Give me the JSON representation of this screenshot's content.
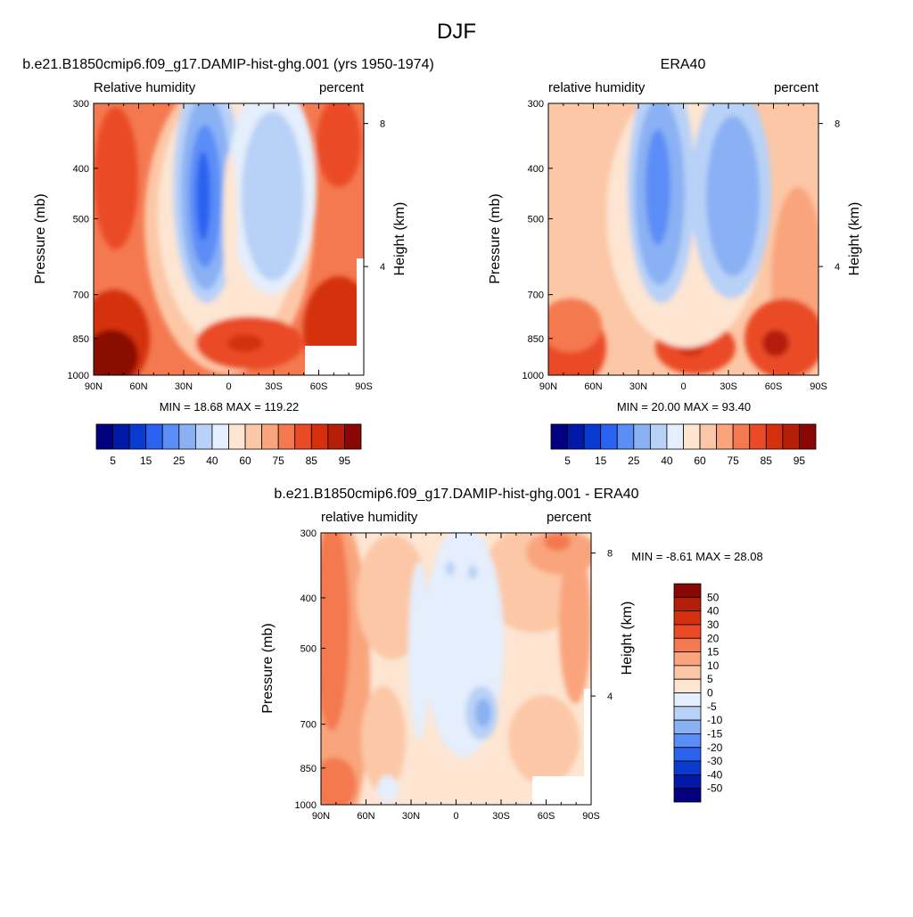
{
  "page": {
    "title": "DJF"
  },
  "chart_data": [
    {
      "type": "heatmap",
      "title": "b.e21.B1850cmip6.f09_g17.DAMIP-hist-ghg.001 (yrs 1950-1974)",
      "left_label": "Relative humidity",
      "right_label": "percent",
      "ylabel": "Pressure (mb)",
      "ylabel_right": "Height (km)",
      "y_ticks": [
        "300",
        "400",
        "500",
        "700",
        "850",
        "1000"
      ],
      "y_tick_values": [
        300,
        400,
        500,
        700,
        850,
        1000
      ],
      "y_right_ticks": [
        "8",
        "4"
      ],
      "x_ticks": [
        "90N",
        "60N",
        "30N",
        "0",
        "30S",
        "60S",
        "90S"
      ],
      "ylim": [
        1000,
        300
      ],
      "stats": "MIN =  18.68  MAX = 119.22",
      "colorbar_labels": [
        "5",
        "15",
        "25",
        "40",
        "60",
        "75",
        "85",
        "95"
      ],
      "colorbar_colors": [
        "#02007e",
        "#0119a6",
        "#0a3bd0",
        "#2c62f0",
        "#5b8df7",
        "#8ab1f4",
        "#b8d1f6",
        "#e4eefc",
        "#fde5d2",
        "#fcc7a6",
        "#f9a47d",
        "#f47950",
        "#ea4b26",
        "#d4300e",
        "#b51e08",
        "#890704"
      ],
      "blobs": [
        {
          "x": 0.4,
          "y": 0.3,
          "rx": 0.1,
          "ry": 0.45,
          "level": 0
        },
        {
          "x": 0.38,
          "y": 0.3,
          "rx": 0.06,
          "ry": 0.35,
          "level": 1
        },
        {
          "x": 0.7,
          "y": 0.3,
          "rx": 0.13,
          "ry": 0.42,
          "level": 0
        },
        {
          "x": 0.7,
          "y": 0.32,
          "rx": 0.08,
          "ry": 0.3,
          "level": 1
        }
      ]
    },
    {
      "type": "heatmap",
      "title": "ERA40",
      "left_label": "relative humidity",
      "right_label": "percent",
      "ylabel": "Pressure (mb)",
      "ylabel_right": "Height (km)",
      "y_ticks": [
        "300",
        "400",
        "500",
        "700",
        "850",
        "1000"
      ],
      "y_tick_values": [
        300,
        400,
        500,
        700,
        850,
        1000
      ],
      "y_right_ticks": [
        "8",
        "4"
      ],
      "x_ticks": [
        "90N",
        "60N",
        "30N",
        "0",
        "30S",
        "60S",
        "90S"
      ],
      "ylim": [
        1000,
        300
      ],
      "stats": "MIN =  20.00  MAX =  93.40",
      "colorbar_labels": [
        "5",
        "15",
        "25",
        "40",
        "60",
        "75",
        "85",
        "95"
      ],
      "colorbar_colors": [
        "#02007e",
        "#0119a6",
        "#0a3bd0",
        "#2c62f0",
        "#5b8df7",
        "#8ab1f4",
        "#b8d1f6",
        "#e4eefc",
        "#fde5d2",
        "#fcc7a6",
        "#f9a47d",
        "#f47950",
        "#ea4b26",
        "#d4300e",
        "#b51e08",
        "#890704"
      ]
    },
    {
      "type": "heatmap",
      "title": "b.e21.B1850cmip6.f09_g17.DAMIP-hist-ghg.001 - ERA40",
      "left_label": "relative humidity",
      "right_label": "percent",
      "ylabel": "Pressure (mb)",
      "ylabel_right": "Height (km)",
      "y_ticks": [
        "300",
        "400",
        "500",
        "700",
        "850",
        "1000"
      ],
      "y_tick_values": [
        300,
        400,
        500,
        700,
        850,
        1000
      ],
      "y_right_ticks": [
        "8",
        "4"
      ],
      "x_ticks": [
        "90N",
        "60N",
        "30N",
        "0",
        "30S",
        "60S",
        "90S"
      ],
      "ylim": [
        1000,
        300
      ],
      "stats": "MIN =  -8.61  MAX =  28.08",
      "colorbar_labels": [
        "50",
        "40",
        "30",
        "20",
        "15",
        "10",
        "5",
        "0",
        "-5",
        "-10",
        "-15",
        "-20",
        "-30",
        "-40",
        "-50"
      ],
      "colorbar_colors": [
        "#890704",
        "#b51e08",
        "#d4300e",
        "#ea4b26",
        "#f47950",
        "#f9a47d",
        "#fcc7a6",
        "#fde5d2",
        "#e4eefc",
        "#b8d1f6",
        "#8ab1f4",
        "#5b8df7",
        "#2c62f0",
        "#0a3bd0",
        "#0119a6",
        "#02007e"
      ]
    }
  ]
}
